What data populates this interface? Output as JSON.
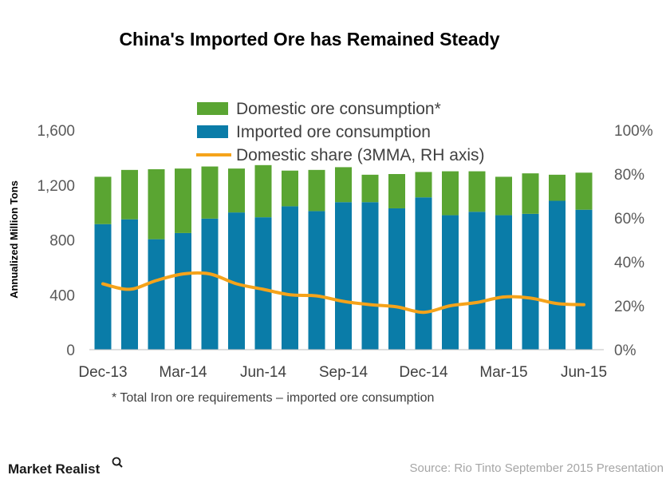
{
  "chart_data": {
    "type": "bar",
    "title": "China's Imported Ore has Remained Steady",
    "ylabel": "Annualized Million Tons",
    "ylim": [
      0,
      1600
    ],
    "y_ticks": [
      "0",
      "400",
      "800",
      "1,200",
      "1,600"
    ],
    "y2lim": [
      0,
      100
    ],
    "y2_ticks": [
      "0%",
      "20%",
      "40%",
      "60%",
      "80%",
      "100%"
    ],
    "x_tick_labels": [
      "Dec-13",
      "Mar-14",
      "Jun-14",
      "Sep-14",
      "Dec-14",
      "Mar-15",
      "Jun-15"
    ],
    "categories": [
      "Dec-13",
      "Jan-14",
      "Feb-14",
      "Mar-14",
      "Apr-14",
      "May-14",
      "Jun-14",
      "Jul-14",
      "Aug-14",
      "Sep-14",
      "Oct-14",
      "Nov-14",
      "Dec-14",
      "Jan-15",
      "Feb-15",
      "Mar-15",
      "Apr-15",
      "May-15",
      "Jun-15"
    ],
    "series": [
      {
        "name": "Imported ore consumption",
        "kind": "bar",
        "color": "#0a7ca8",
        "values": [
          915,
          950,
          805,
          850,
          955,
          1000,
          965,
          1045,
          1010,
          1075,
          1075,
          1030,
          1110,
          980,
          1005,
          980,
          990,
          1085,
          1020
        ]
      },
      {
        "name": "Domestic ore consumption*",
        "kind": "bar-stacked",
        "color": "#5aa532",
        "values": [
          345,
          360,
          510,
          470,
          380,
          320,
          380,
          260,
          300,
          255,
          200,
          250,
          185,
          320,
          295,
          280,
          295,
          190,
          270
        ]
      },
      {
        "name": "Domestic share (3MMA, RH axis)",
        "kind": "line",
        "axis": "right",
        "color": "#f5a31a",
        "values": [
          30,
          27.5,
          31.5,
          34.5,
          34.5,
          30,
          27.5,
          25,
          24.5,
          22,
          20.5,
          19.5,
          17,
          20,
          21.5,
          24,
          23.5,
          21,
          20.5
        ]
      }
    ],
    "grid": false,
    "legend_position": "top-center"
  },
  "footnote": "* Total Iron ore requirements – imported ore consumption",
  "source": "Source: Rio Tinto September 2015 Presentation",
  "brand": "Market Realist"
}
